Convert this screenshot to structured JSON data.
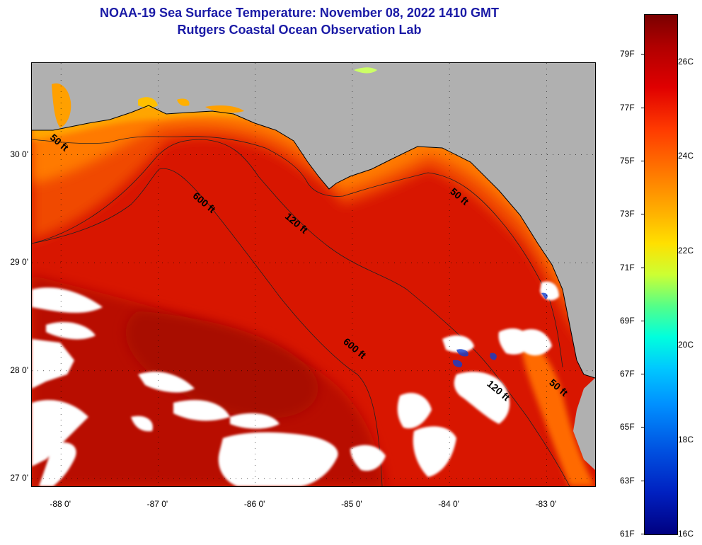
{
  "header": {
    "title": "NOAA-19 Sea Surface Temperature:  November 08, 2022 1410 GMT",
    "subtitle": "Rutgers Coastal Ocean Observation Lab"
  },
  "map": {
    "lon_range": [
      -88.3,
      -82.5
    ],
    "lat_range": [
      26.93,
      30.85
    ],
    "lat_ticks": [
      {
        "label": "30 0'",
        "value": 30
      },
      {
        "label": "29 0'",
        "value": 29
      },
      {
        "label": "28 0'",
        "value": 28
      },
      {
        "label": "27 0'",
        "value": 27
      }
    ],
    "lon_ticks": [
      {
        "label": "-88 0'",
        "value": -88
      },
      {
        "label": "-87 0'",
        "value": -87
      },
      {
        "label": "-86 0'",
        "value": -86
      },
      {
        "label": "-85 0'",
        "value": -85
      },
      {
        "label": "-84 0'",
        "value": -84
      },
      {
        "label": "-83 0'",
        "value": -83
      }
    ],
    "contour_labels": [
      {
        "text": "50 ft",
        "lon": -88.12,
        "lat": 30.15
      },
      {
        "text": "600 ft",
        "lon": -86.65,
        "lat": 29.61
      },
      {
        "text": "120 ft",
        "lon": -85.7,
        "lat": 29.42
      },
      {
        "text": "50 ft",
        "lon": -84.0,
        "lat": 29.65
      },
      {
        "text": "600 ft",
        "lon": -85.1,
        "lat": 28.26
      },
      {
        "text": "120 ft",
        "lon": -83.62,
        "lat": 27.87
      },
      {
        "text": "50 ft",
        "lon": -82.98,
        "lat": 27.88
      }
    ],
    "colors": {
      "land": "#b0b0b0",
      "ocean_deep": "#c00a00",
      "ocean_mid": "#e81c00",
      "coastal": "#ff7a00",
      "nearshore": "#ffb000",
      "cloud": "#ffffff"
    }
  },
  "colorbar": {
    "range_f": [
      61,
      80.5
    ],
    "range_c": [
      16,
      27
    ],
    "f_labels": [
      {
        "label": "79F",
        "value": 79
      },
      {
        "label": "77F",
        "value": 77
      },
      {
        "label": "75F",
        "value": 75
      },
      {
        "label": "73F",
        "value": 73
      },
      {
        "label": "71F",
        "value": 71
      },
      {
        "label": "69F",
        "value": 69
      },
      {
        "label": "67F",
        "value": 67
      },
      {
        "label": "65F",
        "value": 65
      },
      {
        "label": "63F",
        "value": 63
      },
      {
        "label": "61F",
        "value": 61
      }
    ],
    "c_labels": [
      {
        "label": "26C",
        "value": 26
      },
      {
        "label": "24C",
        "value": 24
      },
      {
        "label": "22C",
        "value": 22
      },
      {
        "label": "20C",
        "value": 20
      },
      {
        "label": "18C",
        "value": 18
      },
      {
        "label": "16C",
        "value": 16
      }
    ]
  }
}
